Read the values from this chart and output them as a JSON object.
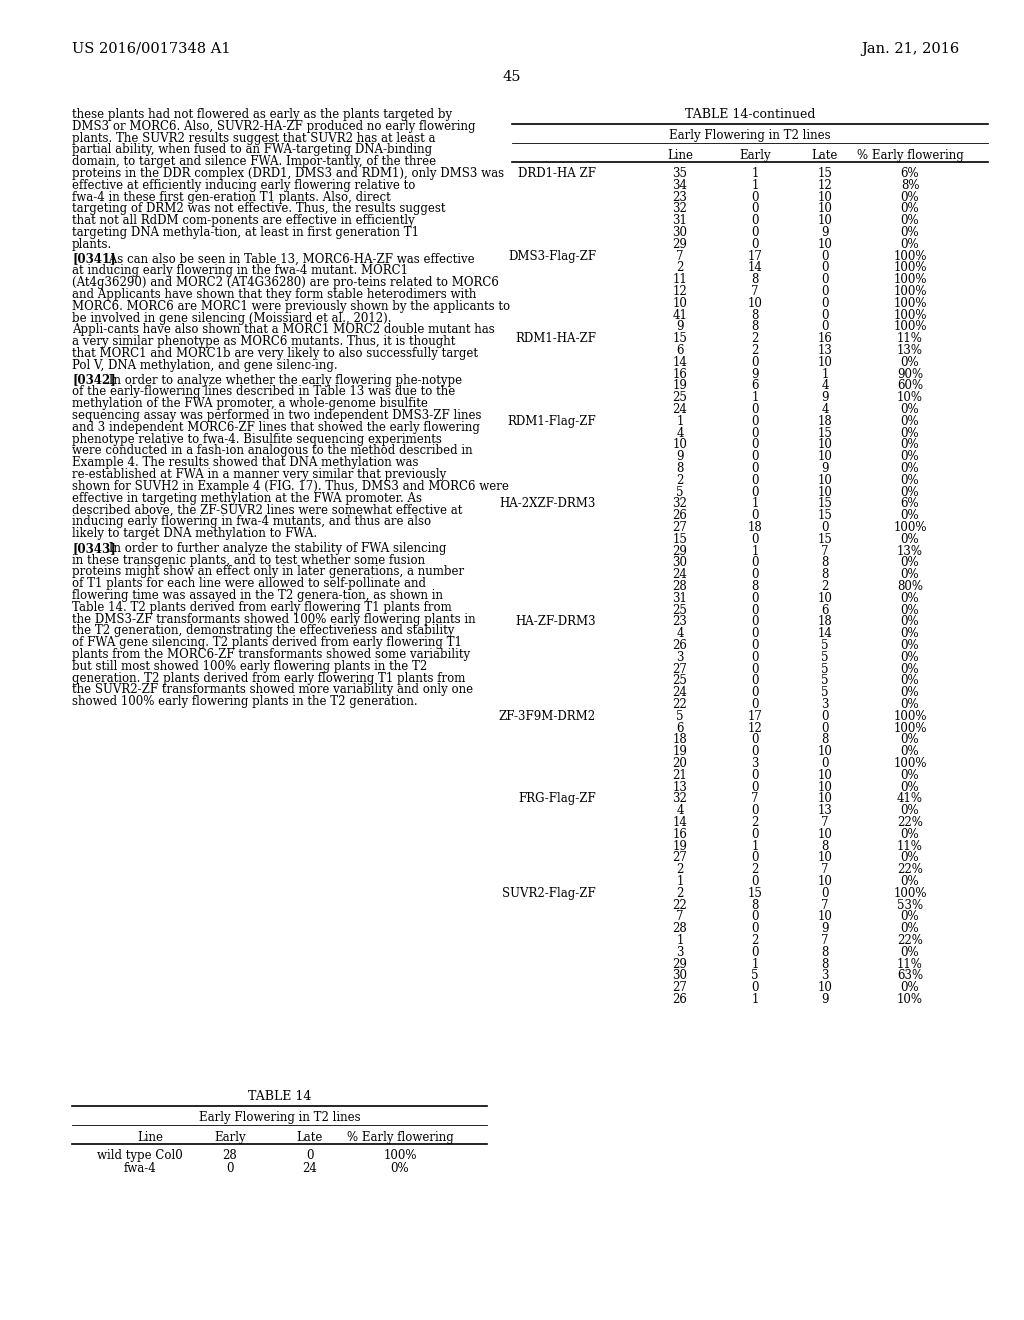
{
  "header_left": "US 2016/0017348 A1",
  "header_right": "Jan. 21, 2016",
  "page_number": "45",
  "left_paragraphs": [
    {
      "bold_prefix": "",
      "text": "these plants had not flowered as early as the plants targeted by DMS3 or MORC6. Also, SUVR2-HA-ZF produced no early flowering plants. The SUVR2 results suggest that SUVR2 has at least a partial ability, when fused to an FWA-targeting DNA-binding domain, to target and silence FWA. Impor-tantly, of the three proteins in the DDR complex (DRD1, DMS3 and RDM1), only DMS3 was effective at efficiently inducing early flowering relative to fwa-4 in these first gen-eration T1 plants. Also, direct targeting of DRM2 was not effective. Thus, the results suggest that not all RdDM com-ponents are effective in efficiently targeting DNA methyla-tion, at least in first generation T1 plants."
    },
    {
      "bold_prefix": "[0341]",
      "text": "    As can also be seen in Table 13, MORC6-HA-ZF was effective at inducing early flowering in the fwa-4 mutant. MORC1 (At4g36290) and MORC2 (AT4G36280) are pro-teins related to MORC6 and Applicants have shown that they form stable heterodimers with MORC6. MORC6 are MORC1 were previously shown by the applicants to be involved in gene silencing (Moissiard et al., 2012). Appli-cants have also shown that a MORC1 MORC2 double mutant has a very similar phenotype as MORC6 mutants. Thus, it is thought that MORC1 and MORC1b are very likely to also successfully target Pol V, DNA methylation, and gene silenc-ing."
    },
    {
      "bold_prefix": "[0342]",
      "text": "    In order to analyze whether the early flowering phe-notype of the early-flowering lines described in Table 13 was due to the methylation of the FWA promoter, a whole-genome bisulfite sequencing assay was performed in two independent DMS3-ZF lines and 3 independent MORC6-ZF lines that showed the early flowering phenotype relative to fwa-4. Bisulfite sequencing experiments were conducted in a fash-ion analogous to the method described in Example 4. The results showed that DNA methylation was re-established at FWA in a manner very similar that previously shown for SUVH2 in Example 4 (FIG. 17). Thus, DMS3 and MORC6 were effective in targeting methylation at the FWA promoter. As described above, the ZF-SUVR2 lines were somewhat effective at inducing early flowering in fwa-4 mutants, and thus are also likely to target DNA methylation to FWA."
    },
    {
      "bold_prefix": "[0343]",
      "text": "    In order to further analyze the stability of FWA silencing in these transgenic plants, and to test whether some fusion proteins might show an effect only in later generations, a number of T1 plants for each line were allowed to self-pollinate and flowering time was assayed in the T2 genera-tion, as shown in Table 14. T2 plants derived from early flowering T1 plants from the DMS3-ZF transformants showed 100% early flowering plants in the T2 generation, demonstrating the effectiveness and stability of FWA gene silencing. T2 plants derived from early flowering T1 plants from the MORC6-ZF transformants showed some variability but still most showed 100% early flowering plants in the T2 generation. T2 plants derived from early flowering T1 plants from the SUVR2-ZF transformants showed more variability and only one showed 100% early flowering plants in the T2 generation."
    }
  ],
  "table14_title": "TABLE 14",
  "table14_subtitle": "Early Flowering in T2 lines",
  "table14_col_headers": [
    "Line",
    "Early",
    "Late",
    "% Early flowering"
  ],
  "table14_rows": [
    [
      "wild type Col0",
      "28",
      "0",
      "100%"
    ],
    [
      "fwa-4",
      "0",
      "24",
      "0%"
    ]
  ],
  "table14cont_title": "TABLE 14-continued",
  "table14cont_subtitle": "Early Flowering in T2 lines",
  "table14cont_col_headers": [
    "Line",
    "Early",
    "Late",
    "% Early flowering"
  ],
  "table14cont_groups": [
    {
      "group_label": "DRD1-HA ZF",
      "rows": [
        [
          "35",
          "1",
          "15",
          "6%"
        ],
        [
          "34",
          "1",
          "12",
          "8%"
        ],
        [
          "23",
          "0",
          "10",
          "0%"
        ],
        [
          "32",
          "0",
          "10",
          "0%"
        ],
        [
          "31",
          "0",
          "10",
          "0%"
        ],
        [
          "30",
          "0",
          "9",
          "0%"
        ],
        [
          "29",
          "0",
          "10",
          "0%"
        ]
      ]
    },
    {
      "group_label": "DMS3-Flag-ZF",
      "rows": [
        [
          "7",
          "17",
          "0",
          "100%"
        ],
        [
          "2",
          "14",
          "0",
          "100%"
        ],
        [
          "11",
          "8",
          "0",
          "100%"
        ],
        [
          "12",
          "7",
          "0",
          "100%"
        ],
        [
          "10",
          "10",
          "0",
          "100%"
        ],
        [
          "41",
          "8",
          "0",
          "100%"
        ],
        [
          "9",
          "8",
          "0",
          "100%"
        ]
      ]
    },
    {
      "group_label": "RDM1-HA-ZF",
      "rows": [
        [
          "15",
          "2",
          "16",
          "11%"
        ],
        [
          "6",
          "2",
          "13",
          "13%"
        ],
        [
          "14",
          "0",
          "10",
          "0%"
        ],
        [
          "16",
          "9",
          "1",
          "90%"
        ],
        [
          "19",
          "6",
          "4",
          "60%"
        ],
        [
          "25",
          "1",
          "9",
          "10%"
        ],
        [
          "24",
          "0",
          "4",
          "0%"
        ]
      ]
    },
    {
      "group_label": "RDM1-Flag-ZF",
      "rows": [
        [
          "1",
          "0",
          "18",
          "0%"
        ],
        [
          "4",
          "0",
          "15",
          "0%"
        ],
        [
          "10",
          "0",
          "10",
          "0%"
        ],
        [
          "9",
          "0",
          "10",
          "0%"
        ],
        [
          "8",
          "0",
          "9",
          "0%"
        ],
        [
          "2",
          "0",
          "10",
          "0%"
        ],
        [
          "5",
          "0",
          "10",
          "0%"
        ]
      ]
    },
    {
      "group_label": "HA-2XZF-DRM3",
      "rows": [
        [
          "32",
          "1",
          "15",
          "6%"
        ],
        [
          "26",
          "0",
          "15",
          "0%"
        ],
        [
          "27",
          "18",
          "0",
          "100%"
        ],
        [
          "15",
          "0",
          "15",
          "0%"
        ],
        [
          "29",
          "1",
          "7",
          "13%"
        ],
        [
          "30",
          "0",
          "8",
          "0%"
        ],
        [
          "24",
          "0",
          "8",
          "0%"
        ],
        [
          "28",
          "8",
          "2",
          "80%"
        ],
        [
          "31",
          "0",
          "10",
          "0%"
        ],
        [
          "25",
          "0",
          "6",
          "0%"
        ]
      ]
    },
    {
      "group_label": "HA-ZF-DRM3",
      "rows": [
        [
          "23",
          "0",
          "18",
          "0%"
        ],
        [
          "4",
          "0",
          "14",
          "0%"
        ],
        [
          "26",
          "0",
          "5",
          "0%"
        ],
        [
          "3",
          "0",
          "5",
          "0%"
        ],
        [
          "27",
          "0",
          "5",
          "0%"
        ],
        [
          "25",
          "0",
          "5",
          "0%"
        ],
        [
          "24",
          "0",
          "5",
          "0%"
        ],
        [
          "22",
          "0",
          "3",
          "0%"
        ]
      ]
    },
    {
      "group_label": "ZF-3F9M-DRM2",
      "rows": [
        [
          "5",
          "17",
          "0",
          "100%"
        ],
        [
          "6",
          "12",
          "0",
          "100%"
        ],
        [
          "18",
          "0",
          "8",
          "0%"
        ],
        [
          "19",
          "0",
          "10",
          "0%"
        ],
        [
          "20",
          "3",
          "0",
          "100%"
        ],
        [
          "21",
          "0",
          "10",
          "0%"
        ],
        [
          "13",
          "0",
          "10",
          "0%"
        ]
      ]
    },
    {
      "group_label": "FRG-Flag-ZF",
      "rows": [
        [
          "32",
          "7",
          "10",
          "41%"
        ],
        [
          "4",
          "0",
          "13",
          "0%"
        ],
        [
          "14",
          "2",
          "7",
          "22%"
        ],
        [
          "16",
          "0",
          "10",
          "0%"
        ],
        [
          "19",
          "1",
          "8",
          "11%"
        ],
        [
          "27",
          "0",
          "10",
          "0%"
        ],
        [
          "2",
          "2",
          "7",
          "22%"
        ],
        [
          "1",
          "0",
          "10",
          "0%"
        ]
      ]
    },
    {
      "group_label": "SUVR2-Flag-ZF",
      "rows": [
        [
          "2",
          "15",
          "0",
          "100%"
        ],
        [
          "22",
          "8",
          "7",
          "53%"
        ],
        [
          "7",
          "0",
          "10",
          "0%"
        ],
        [
          "28",
          "0",
          "9",
          "0%"
        ],
        [
          "1",
          "2",
          "7",
          "22%"
        ],
        [
          "3",
          "0",
          "8",
          "0%"
        ],
        [
          "29",
          "1",
          "8",
          "11%"
        ],
        [
          "30",
          "5",
          "3",
          "63%"
        ],
        [
          "27",
          "0",
          "10",
          "0%"
        ],
        [
          "26",
          "1",
          "9",
          "10%"
        ]
      ]
    }
  ]
}
